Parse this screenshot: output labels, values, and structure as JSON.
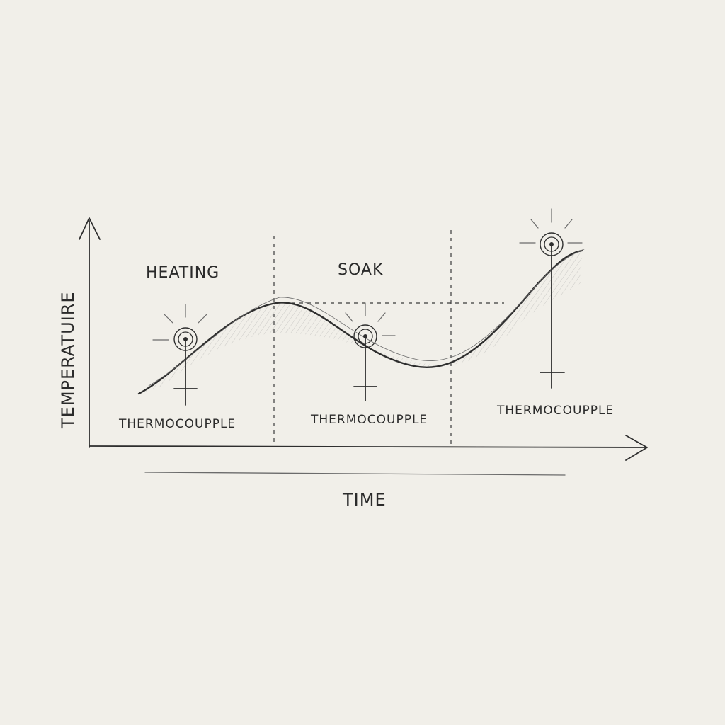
{
  "diagram": {
    "phases": [
      {
        "label": "HEATING"
      },
      {
        "label": "SOAK"
      }
    ],
    "thermocouples": [
      {
        "label": "THERMOCOUPPLE"
      },
      {
        "label": "THERMOCOUPPLE"
      },
      {
        "label": "THERMOCOUPPLE"
      }
    ],
    "axes": {
      "ylabel": "TEMPERATUIRE",
      "xlabel": "TIME"
    },
    "icons": [
      "thermocouple-sensor-icon"
    ],
    "colors": {
      "paper": "#f1efe9",
      "ink": "#2e2e2e"
    }
  }
}
